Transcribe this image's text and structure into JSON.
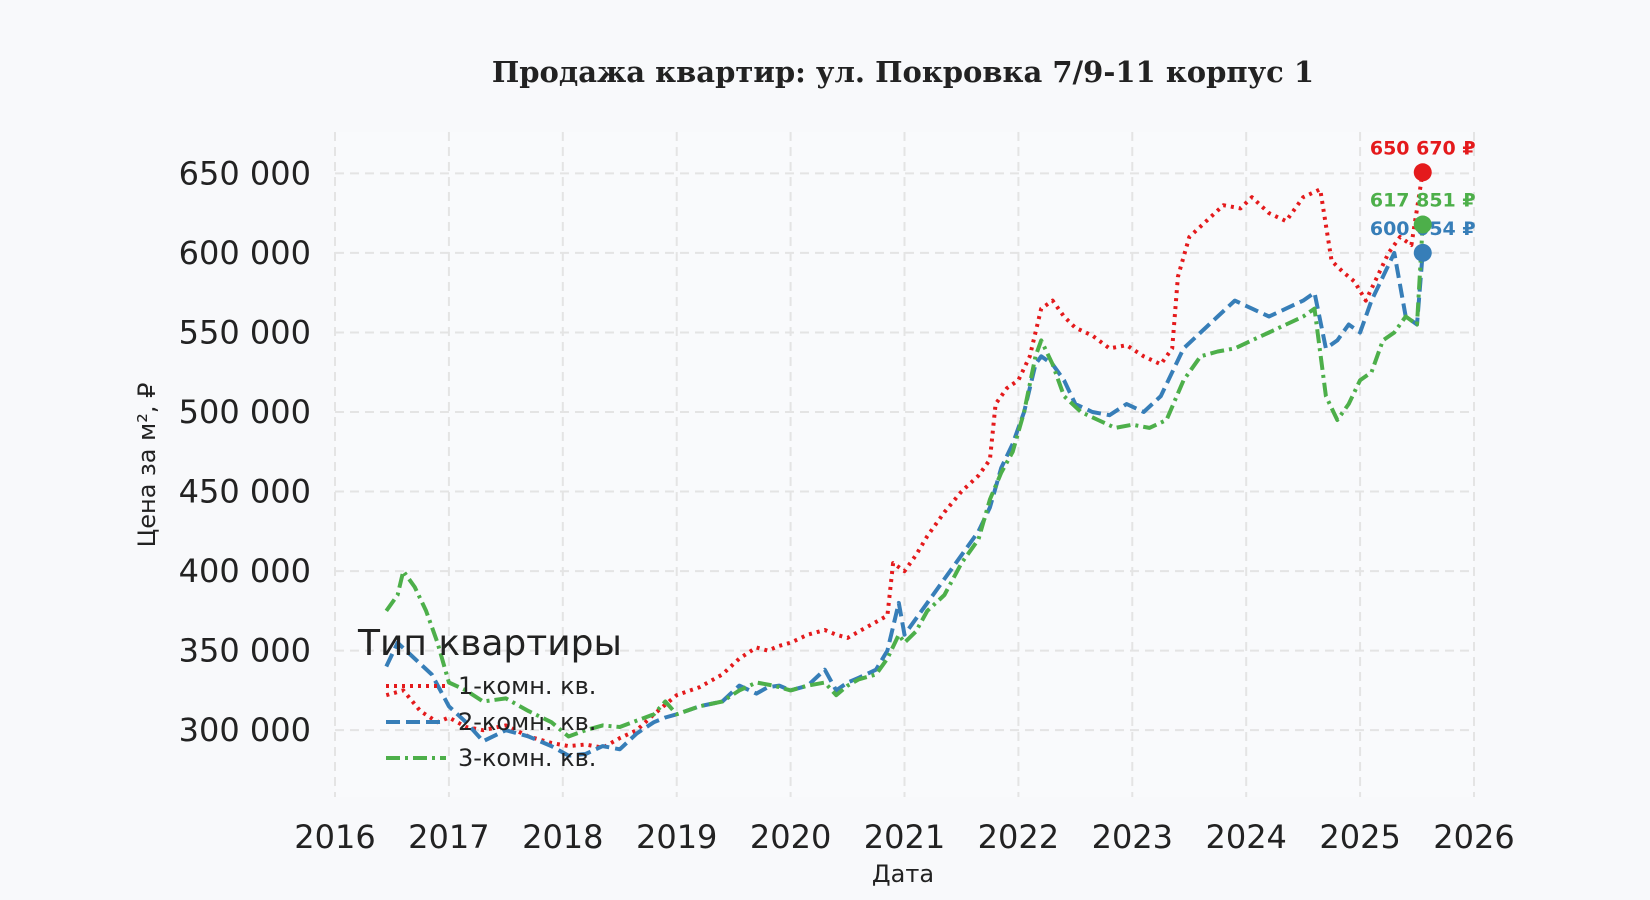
{
  "chart_data": {
    "type": "line",
    "title": "Продажа квартир: ул. Покровка 7/9-11 корпус 1",
    "xlabel": "Дата",
    "ylabel": "Цена за м², ₽",
    "xlim": [
      2016.0,
      2026.0
    ],
    "ylim": [
      258000,
      676000
    ],
    "x_ticks": [
      "2016",
      "2017",
      "2018",
      "2019",
      "2020",
      "2021",
      "2022",
      "2023",
      "2024",
      "2025",
      "2026"
    ],
    "y_ticks": [
      300000,
      350000,
      400000,
      450000,
      500000,
      550000,
      600000,
      650000
    ],
    "y_tick_labels": [
      "300 000",
      "350 000",
      "400 000",
      "450 000",
      "500 000",
      "550 000",
      "600 000",
      "650 000"
    ],
    "grid": true,
    "legend": {
      "title": "Тип квартиры",
      "position": "lower-left"
    },
    "series": [
      {
        "name": "1-комн. кв.",
        "color": "#e41a1c",
        "style": "dotted",
        "end_label": "650 670 ₽",
        "end_value": 650670,
        "x": [
          2016.45,
          2016.6,
          2016.75,
          2016.9,
          2017.0,
          2017.15,
          2017.3,
          2017.5,
          2017.7,
          2017.9,
          2018.05,
          2018.2,
          2018.35,
          2018.5,
          2018.65,
          2018.8,
          2018.9,
          2019.0,
          2019.2,
          2019.4,
          2019.55,
          2019.7,
          2019.8,
          2019.9,
          2020.0,
          2020.15,
          2020.3,
          2020.4,
          2020.5,
          2020.6,
          2020.75,
          2020.85,
          2020.9,
          2021.0,
          2021.1,
          2021.2,
          2021.35,
          2021.5,
          2021.65,
          2021.75,
          2021.8,
          2021.9,
          2022.0,
          2022.1,
          2022.2,
          2022.3,
          2022.4,
          2022.5,
          2022.65,
          2022.8,
          2022.95,
          2023.1,
          2023.25,
          2023.35,
          2023.4,
          2023.5,
          2023.65,
          2023.8,
          2023.95,
          2024.05,
          2024.2,
          2024.35,
          2024.5,
          2024.65,
          2024.75,
          2024.85,
          2024.95,
          2025.05,
          2025.15,
          2025.25,
          2025.35,
          2025.45,
          2025.55
        ],
        "y": [
          322000,
          325000,
          312000,
          305000,
          308000,
          302000,
          300000,
          303000,
          296000,
          292000,
          290000,
          291000,
          289000,
          295000,
          300000,
          310000,
          316000,
          322000,
          327000,
          335000,
          345000,
          352000,
          350000,
          353000,
          355000,
          360000,
          363000,
          360000,
          358000,
          362000,
          368000,
          372000,
          405000,
          400000,
          410000,
          422000,
          437000,
          450000,
          460000,
          470000,
          505000,
          515000,
          520000,
          535000,
          565000,
          570000,
          560000,
          553000,
          548000,
          540000,
          542000,
          535000,
          530000,
          540000,
          585000,
          610000,
          620000,
          630000,
          628000,
          635000,
          625000,
          620000,
          635000,
          640000,
          595000,
          588000,
          582000,
          570000,
          585000,
          600000,
          610000,
          605000,
          650670
        ]
      },
      {
        "name": "2-комн. кв.",
        "color": "#377eb8",
        "style": "dashed",
        "end_label": "600 054 ₽",
        "end_value": 600054,
        "x": [
          2016.45,
          2016.55,
          2016.7,
          2016.85,
          2017.0,
          2017.15,
          2017.3,
          2017.5,
          2017.7,
          2017.9,
          2018.05,
          2018.2,
          2018.35,
          2018.5,
          2018.65,
          2018.8,
          2018.9,
          2019.0,
          2019.2,
          2019.4,
          2019.55,
          2019.7,
          2019.8,
          2019.9,
          2020.0,
          2020.15,
          2020.3,
          2020.4,
          2020.5,
          2020.6,
          2020.75,
          2020.85,
          2020.95,
          2021.0,
          2021.1,
          2021.2,
          2021.35,
          2021.5,
          2021.65,
          2021.75,
          2021.85,
          2021.95,
          2022.05,
          2022.15,
          2022.2,
          2022.3,
          2022.4,
          2022.5,
          2022.65,
          2022.8,
          2022.95,
          2023.1,
          2023.25,
          2023.35,
          2023.45,
          2023.6,
          2023.75,
          2023.9,
          2024.05,
          2024.2,
          2024.35,
          2024.5,
          2024.6,
          2024.7,
          2024.8,
          2024.9,
          2025.0,
          2025.1,
          2025.2,
          2025.3,
          2025.4,
          2025.5,
          2025.55
        ],
        "y": [
          340000,
          355000,
          345000,
          335000,
          315000,
          305000,
          293000,
          300000,
          296000,
          290000,
          284000,
          285000,
          290000,
          288000,
          298000,
          305000,
          308000,
          310000,
          315000,
          318000,
          328000,
          323000,
          327000,
          328000,
          325000,
          328000,
          338000,
          325000,
          330000,
          333000,
          338000,
          350000,
          380000,
          360000,
          370000,
          380000,
          395000,
          410000,
          425000,
          440000,
          465000,
          480000,
          500000,
          530000,
          535000,
          530000,
          520000,
          505000,
          500000,
          498000,
          505000,
          500000,
          510000,
          525000,
          540000,
          550000,
          560000,
          570000,
          565000,
          560000,
          565000,
          570000,
          575000,
          540000,
          545000,
          555000,
          550000,
          570000,
          585000,
          600000,
          560000,
          555000,
          600054
        ]
      },
      {
        "name": "3-комн. кв.",
        "color": "#4daf4a",
        "style": "dashdot",
        "end_label": "617 851 ₽",
        "end_value": 617851,
        "x": [
          2016.45,
          2016.55,
          2016.6,
          2016.7,
          2016.8,
          2016.9,
          2017.0,
          2017.15,
          2017.3,
          2017.5,
          2017.7,
          2017.9,
          2018.05,
          2018.2,
          2018.35,
          2018.5,
          2018.65,
          2018.8,
          2018.9,
          2019.0,
          2019.2,
          2019.4,
          2019.55,
          2019.7,
          2019.85,
          2020.0,
          2020.15,
          2020.3,
          2020.4,
          2020.5,
          2020.6,
          2020.75,
          2020.85,
          2020.95,
          2021.0,
          2021.1,
          2021.2,
          2021.35,
          2021.5,
          2021.65,
          2021.75,
          2021.85,
          2021.95,
          2022.05,
          2022.15,
          2022.2,
          2022.3,
          2022.4,
          2022.55,
          2022.7,
          2022.85,
          2023.0,
          2023.15,
          2023.3,
          2023.45,
          2023.6,
          2023.75,
          2023.9,
          2024.05,
          2024.2,
          2024.35,
          2024.5,
          2024.6,
          2024.7,
          2024.8,
          2024.9,
          2025.0,
          2025.1,
          2025.2,
          2025.3,
          2025.4,
          2025.5,
          2025.55
        ],
        "y": [
          375000,
          385000,
          400000,
          390000,
          375000,
          355000,
          330000,
          325000,
          318000,
          320000,
          312000,
          305000,
          296000,
          300000,
          303000,
          302000,
          306000,
          310000,
          318000,
          310000,
          315000,
          318000,
          325000,
          330000,
          328000,
          325000,
          328000,
          330000,
          322000,
          328000,
          332000,
          335000,
          345000,
          360000,
          355000,
          362000,
          375000,
          385000,
          405000,
          420000,
          445000,
          462000,
          475000,
          500000,
          535000,
          545000,
          530000,
          510000,
          500000,
          495000,
          490000,
          492000,
          490000,
          495000,
          520000,
          535000,
          538000,
          540000,
          545000,
          550000,
          555000,
          560000,
          565000,
          510000,
          495000,
          505000,
          520000,
          525000,
          545000,
          550000,
          560000,
          555000,
          617851
        ]
      }
    ]
  }
}
